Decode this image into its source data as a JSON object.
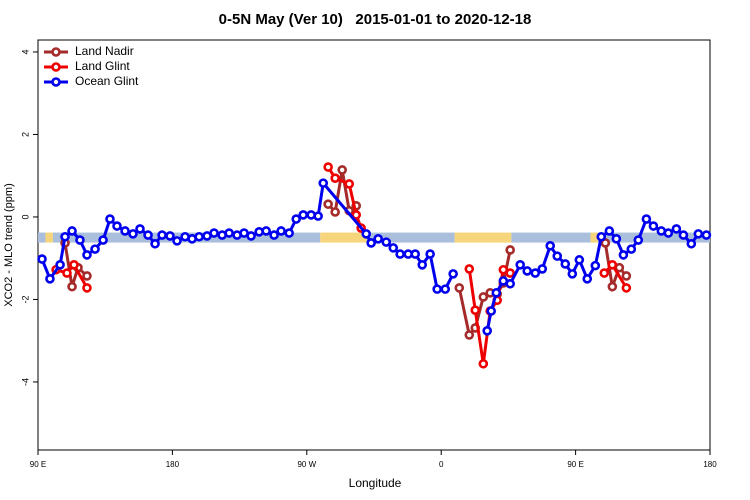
{
  "chart_data": {
    "type": "line",
    "title": "0-5N May (Ver 10)   2015-01-01 to 2020-12-18",
    "xlabel": "Longitude",
    "ylabel": "XCO2 - MLO trend (ppm)",
    "xlim": [
      90,
      540
    ],
    "xticks": [
      {
        "value": 90,
        "label": "90 E"
      },
      180,
      {
        "value": 270,
        "label": "90 W"
      },
      {
        "value": 360,
        "label": "0"
      },
      {
        "value": 450,
        "label": "90 E"
      },
      {
        "value": 540,
        "label": "180"
      }
    ],
    "ylim": [
      -5.65,
      4.29
    ],
    "yticks": [
      -4,
      -2,
      0,
      2,
      4
    ],
    "legend": "top-left",
    "band": {
      "y": -0.5,
      "segments": [
        {
          "start": 90,
          "end": 95,
          "color": "#a9bfdc"
        },
        {
          "start": 95,
          "end": 100,
          "color": "#f7d57c"
        },
        {
          "start": 100,
          "end": 279,
          "color": "#a9bfdc"
        },
        {
          "start": 279,
          "end": 310,
          "color": "#f7d57c"
        },
        {
          "start": 310,
          "end": 369,
          "color": "#a9bfdc"
        },
        {
          "start": 369,
          "end": 407,
          "color": "#f7d57c"
        },
        {
          "start": 407,
          "end": 460,
          "color": "#a9bfdc"
        },
        {
          "start": 460,
          "end": 465,
          "color": "#f7d57c"
        },
        {
          "start": 465,
          "end": 540,
          "color": "#a9bfdc"
        }
      ]
    },
    "series": [
      {
        "name": "Land Nadir",
        "color": "#a52a2a",
        "x": [
          108.1,
          112.8,
          116.8,
          122.8,
          null,
          284.3,
          289,
          293.7,
          298.4,
          303.1,
          null,
          372.1,
          378.8,
          382.8,
          388.2,
          392.8,
          397.5,
          401.6,
          406.2,
          null,
          469.9,
          474.6,
          479.3,
          484
        ],
        "values": [
          -0.63,
          -1.69,
          -1.23,
          -1.43,
          null,
          0.31,
          0.12,
          1.14,
          0.15,
          0.27,
          null,
          -1.72,
          -2.86,
          -2.69,
          -1.94,
          -1.84,
          -1.87,
          -1.6,
          -0.8,
          null,
          -0.63,
          -1.69,
          -1.23,
          -1.43
        ]
      },
      {
        "name": "Land Glint",
        "color": "#ee0000",
        "x": [
          102.1,
          109.4,
          114.1,
          122.8,
          null,
          284.3,
          289,
          298.4,
          303.1,
          306.4,
          null,
          378.8,
          382.8,
          388.2,
          392.8,
          397.5,
          401.6,
          406.2,
          null,
          469.2,
          474.6,
          484
        ],
        "values": [
          -1.28,
          -1.36,
          -1.16,
          -1.72,
          null,
          1.21,
          0.94,
          0.8,
          0.05,
          -0.27,
          null,
          -1.26,
          -2.26,
          -3.56,
          -2.28,
          -2.02,
          -1.28,
          -1.36,
          null,
          -1.36,
          -1.16,
          -1.72
        ]
      },
      {
        "name": "Ocean Glint",
        "color": "#0000ee",
        "x": [
          92.7,
          98,
          104.8,
          108.1,
          112.8,
          118.1,
          122.8,
          128.2,
          133.6,
          138.2,
          142.9,
          148.3,
          153.6,
          158.3,
          163.7,
          168.4,
          173.1,
          178.4,
          183.1,
          188.5,
          193.2,
          197.9,
          203.2,
          207.9,
          213.3,
          218,
          223.3,
          228,
          232.7,
          238.1,
          242.8,
          248.1,
          252.8,
          258.2,
          262.9,
          267.6,
          272.9,
          277.6,
          281,
          309.8,
          313.1,
          317.8,
          323.2,
          327.9,
          332.5,
          337.9,
          342.6,
          347.3,
          352.6,
          357.3,
          362.7,
          368,
          null,
          390.8,
          393.5,
          396.9,
          401.6,
          406.2,
          412.9,
          417.6,
          423,
          427.7,
          433,
          437.7,
          443.1,
          447.8,
          452.5,
          457.8,
          463.2,
          467.2,
          472.6,
          477.3,
          482,
          487.3,
          492,
          497.4,
          502.1,
          507.4,
          512.1,
          517.5,
          522.2,
          527.5,
          532.2,
          537.6
        ],
        "values": [
          -1.02,
          -1.5,
          -1.16,
          -0.48,
          -0.34,
          -0.56,
          -0.92,
          -0.78,
          -0.56,
          -0.05,
          -0.22,
          -0.34,
          -0.41,
          -0.29,
          -0.44,
          -0.65,
          -0.44,
          -0.46,
          -0.58,
          -0.48,
          -0.53,
          -0.48,
          -0.46,
          -0.39,
          -0.44,
          -0.39,
          -0.44,
          -0.39,
          -0.46,
          -0.36,
          -0.34,
          -0.44,
          -0.34,
          -0.39,
          -0.05,
          0.05,
          0.05,
          0.02,
          0.82,
          -0.41,
          -0.63,
          -0.53,
          -0.61,
          -0.75,
          -0.9,
          -0.9,
          -0.9,
          -1.16,
          -0.9,
          -1.75,
          -1.75,
          -1.38,
          null,
          -2.76,
          -2.28,
          -1.84,
          -1.55,
          -1.62,
          -1.16,
          -1.31,
          -1.36,
          -1.26,
          -0.7,
          -0.95,
          -1.14,
          -1.38,
          -1.04,
          -1.5,
          -1.18,
          -0.48,
          -0.34,
          -0.53,
          -0.92,
          -0.78,
          -0.56,
          -0.05,
          -0.22,
          -0.34,
          -0.39,
          -0.29,
          -0.44,
          -0.65,
          -0.41,
          -0.44
        ]
      }
    ]
  }
}
